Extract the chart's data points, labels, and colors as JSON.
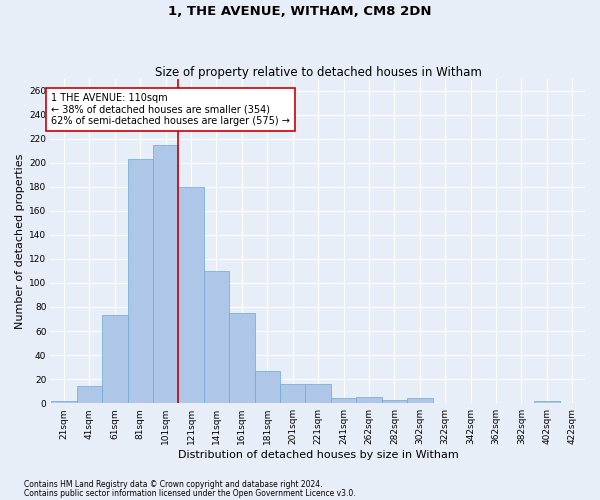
{
  "title": "1, THE AVENUE, WITHAM, CM8 2DN",
  "subtitle": "Size of property relative to detached houses in Witham",
  "xlabel": "Distribution of detached houses by size in Witham",
  "ylabel": "Number of detached properties",
  "footnote1": "Contains HM Land Registry data © Crown copyright and database right 2024.",
  "footnote2": "Contains public sector information licensed under the Open Government Licence v3.0.",
  "bar_labels": [
    "21sqm",
    "41sqm",
    "61sqm",
    "81sqm",
    "101sqm",
    "121sqm",
    "141sqm",
    "161sqm",
    "181sqm",
    "201sqm",
    "221sqm",
    "241sqm",
    "262sqm",
    "282sqm",
    "302sqm",
    "322sqm",
    "342sqm",
    "362sqm",
    "382sqm",
    "402sqm",
    "422sqm"
  ],
  "bar_values": [
    2,
    14,
    73,
    203,
    215,
    180,
    110,
    75,
    27,
    16,
    16,
    4,
    5,
    3,
    4,
    0,
    0,
    0,
    0,
    2,
    0
  ],
  "bar_color": "#aec6e8",
  "bar_edgecolor": "#6aaad4",
  "bar_width": 1.0,
  "vline_x": 4.5,
  "vline_color": "#cc0000",
  "annotation_text": "1 THE AVENUE: 110sqm\n← 38% of detached houses are smaller (354)\n62% of semi-detached houses are larger (575) →",
  "annotation_box_color": "#ffffff",
  "annotation_box_edgecolor": "#cc0000",
  "ylim": [
    0,
    270
  ],
  "yticks": [
    0,
    20,
    40,
    60,
    80,
    100,
    120,
    140,
    160,
    180,
    200,
    220,
    240,
    260
  ],
  "background_color": "#e8eef7",
  "grid_color": "#ffffff",
  "title_fontsize": 9.5,
  "subtitle_fontsize": 8.5,
  "ylabel_fontsize": 8,
  "xlabel_fontsize": 8,
  "tick_fontsize": 6.5,
  "annotation_fontsize": 7,
  "footnote_fontsize": 5.5
}
